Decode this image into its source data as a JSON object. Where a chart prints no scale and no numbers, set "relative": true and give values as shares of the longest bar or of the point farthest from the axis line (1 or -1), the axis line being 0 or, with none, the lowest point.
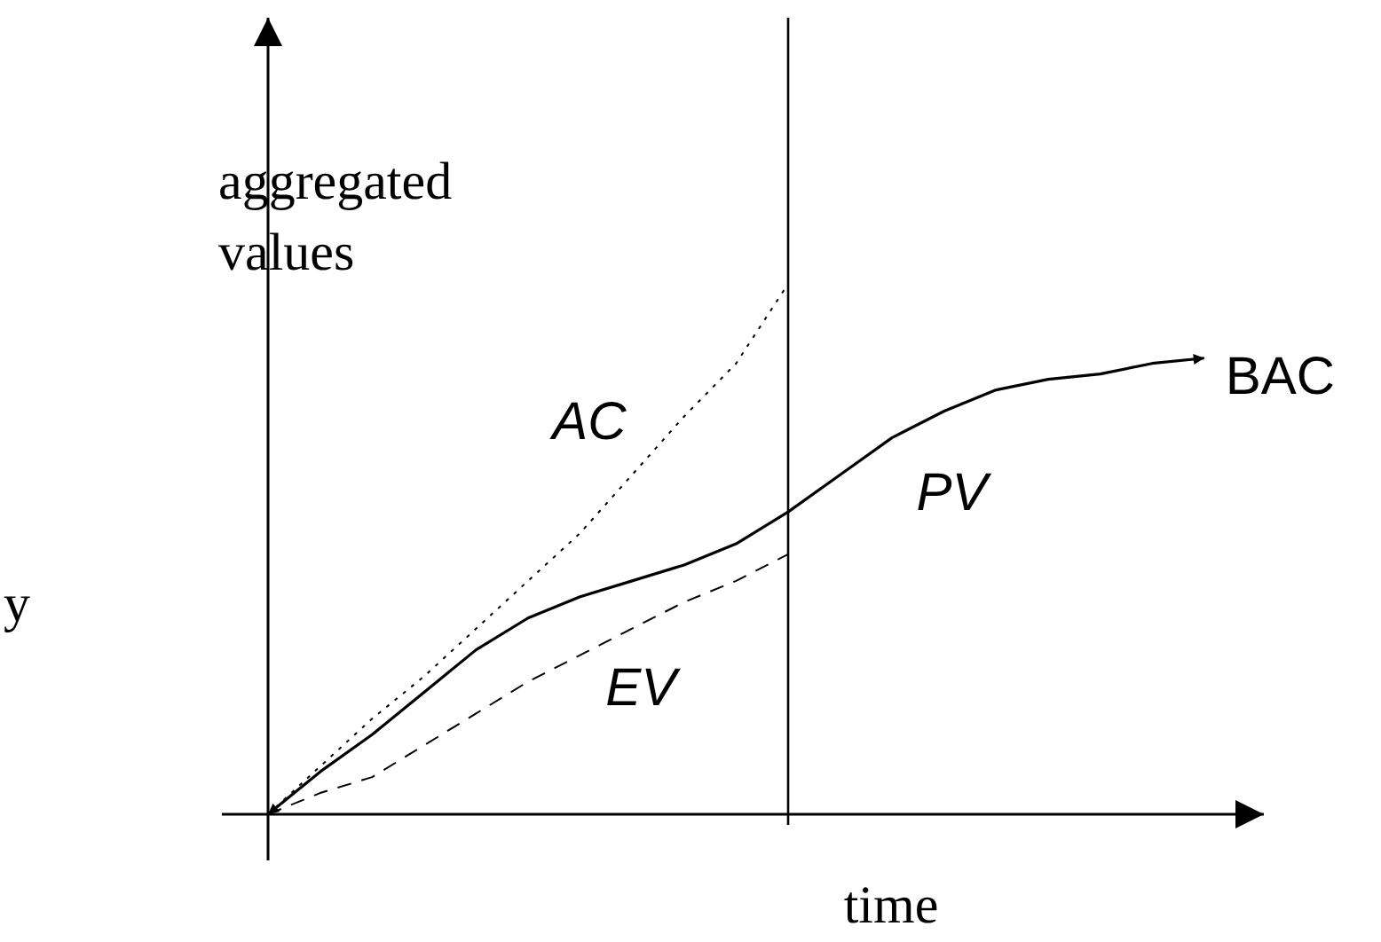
{
  "chart_data": {
    "type": "line",
    "relative": true,
    "xlabel": "time",
    "ylabel": "aggregated values",
    "categories": [
      null,
      null,
      null,
      null,
      null,
      null,
      null,
      null,
      null,
      null,
      null,
      null,
      null,
      null,
      null,
      null,
      null,
      null,
      null
    ],
    "series": [
      {
        "name": "PV",
        "color": "#000000",
        "line_style": "solid",
        "values": [
          0,
          0.08,
          0.15,
          0.23,
          0.31,
          0.37,
          0.41,
          0.44,
          0.47,
          0.51,
          0.57,
          0.64,
          0.71,
          0.76,
          0.8,
          0.82,
          0.83,
          0.85,
          0.86
        ]
      },
      {
        "name": "AC",
        "color": "#000000",
        "line_style": "dotted",
        "values": [
          0,
          0.09,
          0.18,
          0.26,
          0.35,
          0.44,
          0.53,
          0.64,
          0.75,
          0.85,
          1,
          null,
          null,
          null,
          null,
          null,
          null,
          null,
          null
        ]
      },
      {
        "name": "EV",
        "color": "#000000",
        "line_style": "dashed",
        "values": [
          0,
          0.04,
          0.07,
          0.13,
          0.19,
          0.25,
          0.3,
          0.35,
          0.4,
          0.44,
          0.49,
          null,
          null,
          null,
          null,
          null,
          null,
          null,
          null
        ]
      }
    ],
    "annotations": [
      "BAC",
      "y"
    ]
  }
}
